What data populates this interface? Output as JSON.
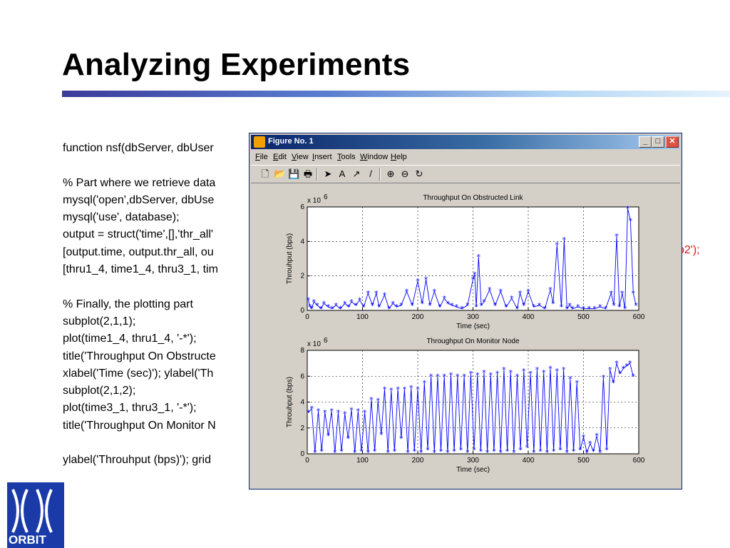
{
  "slide": {
    "title": "Analyzing Experiments",
    "code_lines": [
      "function nsf(dbServer, dbUser",
      "",
      "% Part where we retrieve data",
      "mysql('open',dbServer, dbUse",
      "mysql('use', database);",
      "output = struct('time',[],'thr_all'",
      "[output.time, output.thr_all, ou",
      "[thru1_4, time1_4, thru3_1, tim",
      "",
      "% Finally, the plotting part",
      "subplot(2,1,1);",
      "plot(time1_4, thru1_4, '-*');",
      "title('Throughput On Obstructe",
      "xlabel('Time (sec)'); ylabel('Th",
      "subplot(2,1,2);",
      "plot(time3_1, thru3_1, '-*');",
      "title('Throughput On Monitor N",
      "",
      "ylabel('Throuhput (bps)'); grid"
    ],
    "red_fragment": "o2');",
    "logo_text": "ORBIT",
    "colors": {
      "accent_rule": "#3a3a9a",
      "logo_blue": "#1a3aa8",
      "code_red": "#e01818",
      "plot_line": "#0000ff"
    }
  },
  "figure_window": {
    "title": "Figure No. 1",
    "menu": [
      {
        "ul": "F",
        "rest": "ile"
      },
      {
        "ul": "E",
        "rest": "dit"
      },
      {
        "ul": "V",
        "rest": "iew"
      },
      {
        "ul": "I",
        "rest": "nsert"
      },
      {
        "ul": "T",
        "rest": "ools"
      },
      {
        "ul": "W",
        "rest": "indow"
      },
      {
        "ul": "H",
        "rest": "elp"
      }
    ],
    "toolbar": [
      "new-figure-icon",
      "open-icon",
      "save-icon",
      "print-icon",
      "select-arrow-icon",
      "insert-text-icon",
      "insert-arrow-icon",
      "insert-line-icon",
      "zoom-in-icon",
      "zoom-out-icon",
      "rotate-icon"
    ],
    "toolbar_glyphs": [
      "🗋",
      "📂",
      "💾",
      "🖶",
      "➤",
      "A",
      "↗",
      "/",
      "⊕",
      "⊖",
      "↻"
    ],
    "window_buttons": {
      "minimize": "_",
      "maximize": "□",
      "close": "✕"
    }
  },
  "chart_data": [
    {
      "type": "line",
      "title": "Throughput On Obstructed Link",
      "xlabel": "Time (sec)",
      "ylabel": "Throuhput (bps)",
      "exponent_label": "x 10",
      "exponent_power": "6",
      "xlim": [
        0,
        600
      ],
      "ylim": [
        0,
        6
      ],
      "xticks": [
        0,
        100,
        200,
        300,
        400,
        500,
        600
      ],
      "yticks": [
        0,
        2,
        4,
        6
      ],
      "grid": true,
      "marker": "*",
      "series": [
        {
          "x": [
            2,
            5,
            8,
            12,
            18,
            25,
            30,
            38,
            45,
            52,
            60,
            68,
            75,
            80,
            88,
            95,
            102,
            110,
            118,
            125,
            130,
            140,
            148,
            155,
            162,
            170,
            180,
            190,
            200,
            208,
            215,
            222,
            230,
            240,
            248,
            255,
            262,
            270,
            280,
            290,
            300,
            303,
            306,
            310,
            315,
            320,
            330,
            340,
            350,
            360,
            370,
            380,
            385,
            392,
            400,
            410,
            420,
            430,
            440,
            445,
            452,
            460,
            465,
            470,
            475,
            480,
            490,
            500,
            510,
            520,
            530,
            540,
            550,
            555,
            560,
            565,
            570,
            575,
            580,
            585,
            590,
            595
          ],
          "y": [
            0.6,
            0.2,
            0.1,
            0.5,
            0.3,
            0.1,
            0.4,
            0.2,
            0.1,
            0.3,
            0.1,
            0.4,
            0.2,
            0.5,
            0.3,
            0.6,
            0.2,
            1.0,
            0.3,
            1.0,
            0.2,
            0.9,
            0.1,
            0.4,
            0.2,
            0.3,
            1.1,
            0.3,
            1.7,
            0.4,
            1.8,
            0.3,
            1.1,
            0.2,
            0.7,
            0.4,
            0.3,
            0.2,
            0.1,
            0.3,
            1.8,
            2.1,
            0.2,
            3.1,
            0.3,
            0.5,
            1.2,
            0.3,
            1.1,
            0.2,
            0.7,
            0.1,
            1.0,
            0.3,
            1.1,
            0.2,
            0.3,
            0.1,
            1.2,
            0.4,
            3.8,
            0.2,
            4.1,
            0.1,
            0.3,
            0.1,
            0.2,
            0.1,
            0.1,
            0.1,
            0.2,
            0.1,
            1.0,
            0.3,
            4.3,
            0.2,
            1.0,
            0.1,
            5.9,
            5.2,
            1.0,
            0.3
          ]
        }
      ]
    },
    {
      "type": "line",
      "title": "Throughput On Monitor Node",
      "xlabel": "Time (sec)",
      "ylabel": "Throuhput (bps)",
      "exponent_label": "x 10",
      "exponent_power": "6",
      "xlim": [
        0,
        600
      ],
      "ylim": [
        0,
        8
      ],
      "xticks": [
        0,
        100,
        200,
        300,
        400,
        500,
        600
      ],
      "yticks": [
        0,
        2,
        4,
        6,
        8
      ],
      "grid": true,
      "marker": "*",
      "series": [
        {
          "x": [
            2,
            8,
            14,
            20,
            26,
            32,
            38,
            44,
            50,
            56,
            62,
            68,
            74,
            80,
            86,
            92,
            98,
            104,
            110,
            116,
            122,
            128,
            134,
            140,
            146,
            152,
            158,
            164,
            170,
            176,
            182,
            188,
            194,
            200,
            206,
            212,
            218,
            224,
            230,
            236,
            242,
            248,
            254,
            260,
            266,
            272,
            278,
            284,
            290,
            296,
            302,
            308,
            314,
            320,
            326,
            332,
            338,
            344,
            350,
            356,
            362,
            368,
            374,
            380,
            386,
            392,
            398,
            404,
            410,
            416,
            422,
            428,
            434,
            440,
            446,
            452,
            458,
            464,
            470,
            476,
            482,
            488,
            494,
            500,
            506,
            512,
            518,
            524,
            530,
            536,
            542,
            548,
            554,
            560,
            566,
            572,
            578,
            584,
            590
          ],
          "y": [
            3.2,
            3.5,
            0.1,
            3.3,
            0.2,
            3.2,
            1.4,
            3.3,
            0.1,
            3.2,
            0.2,
            3.1,
            1.2,
            3.4,
            0.1,
            3.3,
            0.2,
            3.2,
            0.1,
            4.2,
            0.2,
            4.1,
            1.5,
            5.0,
            0.1,
            4.9,
            0.2,
            5.0,
            1.2,
            5.0,
            0.1,
            5.1,
            0.2,
            5.0,
            0.1,
            5.5,
            0.3,
            6.0,
            0.1,
            6.0,
            0.2,
            6.0,
            0.1,
            6.1,
            0.2,
            6.0,
            0.3,
            6.0,
            0.1,
            6.2,
            0.3,
            6.1,
            0.2,
            6.3,
            0.1,
            6.1,
            0.2,
            6.2,
            0.1,
            6.5,
            0.2,
            6.3,
            0.1,
            6.0,
            0.3,
            6.4,
            0.5,
            6.2,
            0.1,
            6.5,
            0.2,
            6.3,
            0.1,
            6.6,
            0.2,
            6.4,
            0.3,
            6.5,
            0.1,
            5.8,
            0.2,
            5.5,
            0.3,
            1.3,
            0.1,
            0.8,
            0.2,
            1.4,
            0.1,
            5.9,
            0.3,
            6.5,
            5.5,
            7.0,
            6.2,
            6.6,
            6.8,
            7.0,
            6.0
          ]
        }
      ]
    }
  ]
}
